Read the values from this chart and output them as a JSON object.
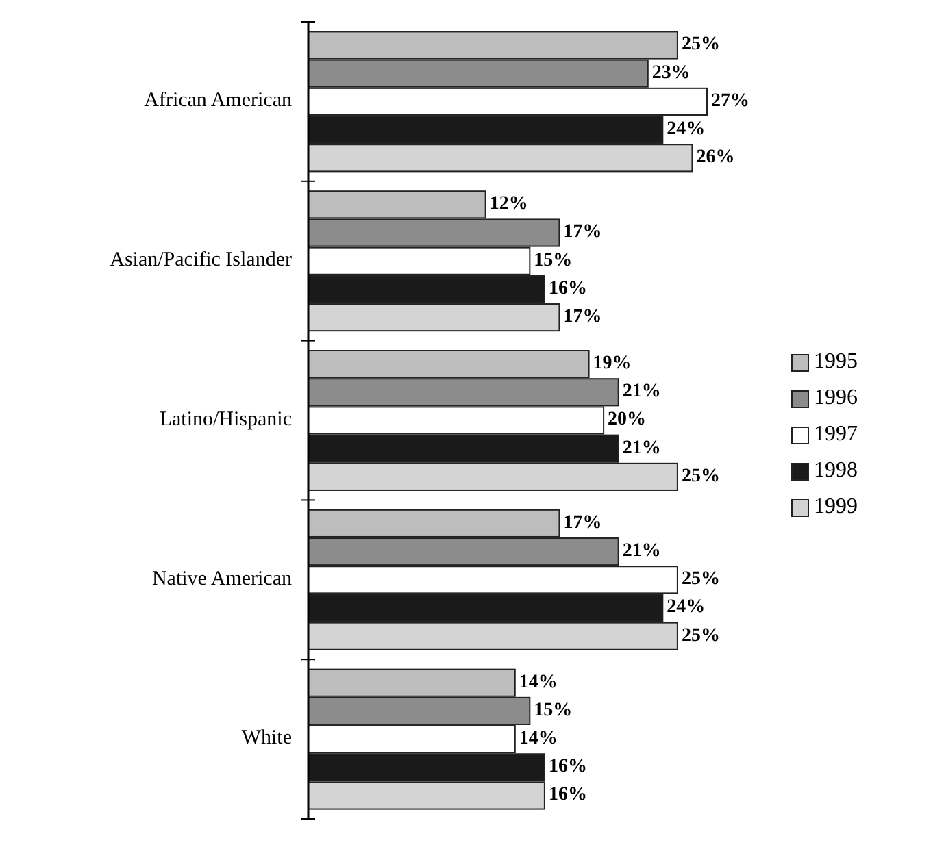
{
  "chart_data": {
    "type": "bar",
    "orientation": "horizontal",
    "categories": [
      "African American",
      "Asian/Pacific Islander",
      "Latino/Hispanic",
      "Native American",
      "White"
    ],
    "legend": "right",
    "series": [
      {
        "name": "1995",
        "color": "#bdbdbd",
        "values": [
          25,
          12,
          19,
          17,
          14
        ],
        "value_labels": [
          "25%",
          "12%",
          "19%",
          "17%",
          "14%"
        ]
      },
      {
        "name": "1996",
        "color": "#8c8c8c",
        "values": [
          23,
          17,
          21,
          21,
          15
        ],
        "value_labels": [
          "23%",
          "17%",
          "21%",
          "21%",
          "15%"
        ]
      },
      {
        "name": "1997",
        "color": "#ffffff",
        "values": [
          27,
          15,
          20,
          25,
          14
        ],
        "value_labels": [
          "27%",
          "15%",
          "20%",
          "25%",
          "14%"
        ]
      },
      {
        "name": "1998",
        "color": "#1a1a1a",
        "values": [
          24,
          16,
          21,
          24,
          16
        ],
        "value_labels": [
          "24%",
          "16%",
          "21%",
          "24%",
          "16%"
        ]
      },
      {
        "name": "1999",
        "color": "#d4d4d4",
        "values": [
          26,
          17,
          25,
          25,
          16
        ],
        "value_labels": [
          "26%",
          "17%",
          "25%",
          "25%",
          "16%"
        ]
      }
    ]
  }
}
